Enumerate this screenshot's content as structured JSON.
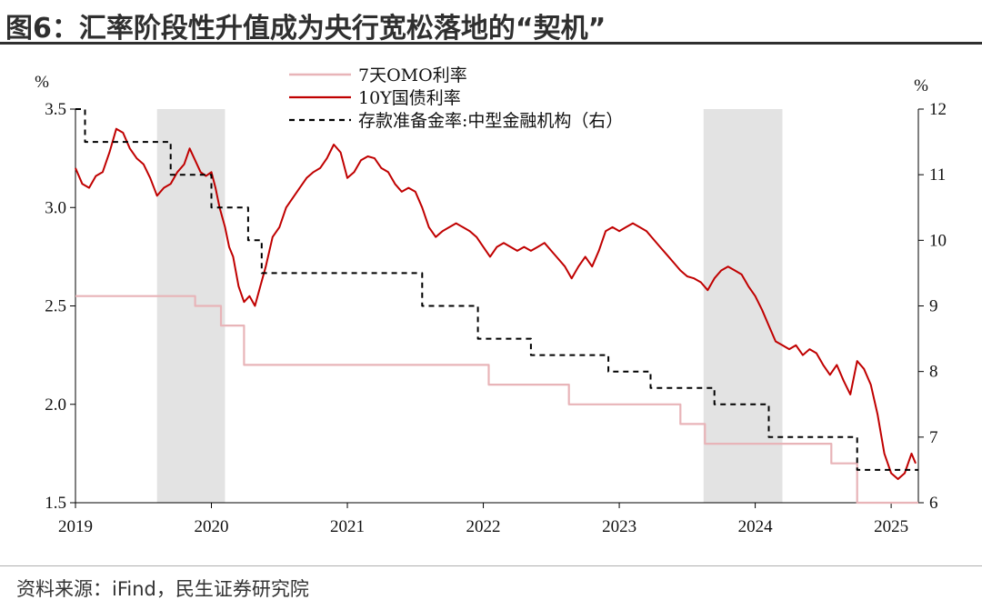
{
  "header": {
    "title": "图6：汇率阶段性升值成为央行宽松落地的“契机”"
  },
  "footer": {
    "source": "资料来源：iFind，民生证券研究院"
  },
  "chart_data": {
    "type": "line",
    "left_axis": {
      "unit": "%",
      "ylim": [
        1.5,
        3.5
      ],
      "ticks": [
        "3.5",
        "3.0",
        "2.5",
        "2.0",
        "1.5"
      ]
    },
    "right_axis": {
      "unit": "%",
      "ylim": [
        6,
        12
      ],
      "ticks": [
        "12",
        "11",
        "10",
        "9",
        "8",
        "7",
        "6"
      ]
    },
    "x_axis": {
      "xlim": [
        2019.0,
        2025.2
      ],
      "ticks": [
        "2019",
        "2020",
        "2021",
        "2022",
        "2023",
        "2024",
        "2025"
      ]
    },
    "shaded_periods": [
      [
        2019.6,
        2020.1
      ],
      [
        2023.62,
        2024.2
      ]
    ],
    "colors": {
      "omo": "#e8b4b8",
      "bond": "#c00000",
      "rrr": "#000000",
      "shade": "#e3e3e3"
    },
    "legend": [
      {
        "label": "7天OMO利率",
        "style": "omo"
      },
      {
        "label": "10Y国债利率",
        "style": "bond"
      },
      {
        "label": "存款准备金率:中型金融机构（右）",
        "style": "rrr"
      }
    ],
    "series": [
      {
        "name": "7天OMO利率",
        "axis": "left",
        "step": true,
        "points": [
          [
            2019.0,
            2.55
          ],
          [
            2019.88,
            2.5
          ],
          [
            2020.07,
            2.4
          ],
          [
            2020.24,
            2.2
          ],
          [
            2022.04,
            2.1
          ],
          [
            2022.63,
            2.0
          ],
          [
            2023.45,
            1.9
          ],
          [
            2023.63,
            1.8
          ],
          [
            2024.56,
            1.7
          ],
          [
            2024.75,
            1.5
          ],
          [
            2025.2,
            1.5
          ]
        ]
      },
      {
        "name": "10Y国债利率",
        "axis": "left",
        "step": false,
        "points": [
          [
            2019.0,
            3.2
          ],
          [
            2019.05,
            3.12
          ],
          [
            2019.1,
            3.1
          ],
          [
            2019.15,
            3.16
          ],
          [
            2019.2,
            3.18
          ],
          [
            2019.25,
            3.28
          ],
          [
            2019.3,
            3.4
          ],
          [
            2019.35,
            3.38
          ],
          [
            2019.4,
            3.3
          ],
          [
            2019.45,
            3.25
          ],
          [
            2019.5,
            3.22
          ],
          [
            2019.55,
            3.15
          ],
          [
            2019.6,
            3.06
          ],
          [
            2019.65,
            3.1
          ],
          [
            2019.7,
            3.12
          ],
          [
            2019.75,
            3.18
          ],
          [
            2019.8,
            3.22
          ],
          [
            2019.84,
            3.3
          ],
          [
            2019.88,
            3.24
          ],
          [
            2019.92,
            3.18
          ],
          [
            2019.96,
            3.16
          ],
          [
            2020.0,
            3.18
          ],
          [
            2020.03,
            3.1
          ],
          [
            2020.06,
            3.0
          ],
          [
            2020.1,
            2.9
          ],
          [
            2020.13,
            2.8
          ],
          [
            2020.16,
            2.75
          ],
          [
            2020.2,
            2.6
          ],
          [
            2020.24,
            2.52
          ],
          [
            2020.28,
            2.55
          ],
          [
            2020.32,
            2.5
          ],
          [
            2020.36,
            2.6
          ],
          [
            2020.4,
            2.7
          ],
          [
            2020.45,
            2.85
          ],
          [
            2020.5,
            2.9
          ],
          [
            2020.55,
            3.0
          ],
          [
            2020.6,
            3.05
          ],
          [
            2020.65,
            3.1
          ],
          [
            2020.7,
            3.15
          ],
          [
            2020.75,
            3.18
          ],
          [
            2020.8,
            3.2
          ],
          [
            2020.85,
            3.25
          ],
          [
            2020.9,
            3.32
          ],
          [
            2020.95,
            3.28
          ],
          [
            2021.0,
            3.15
          ],
          [
            2021.05,
            3.18
          ],
          [
            2021.1,
            3.24
          ],
          [
            2021.15,
            3.26
          ],
          [
            2021.2,
            3.25
          ],
          [
            2021.25,
            3.2
          ],
          [
            2021.3,
            3.18
          ],
          [
            2021.35,
            3.12
          ],
          [
            2021.4,
            3.08
          ],
          [
            2021.45,
            3.1
          ],
          [
            2021.5,
            3.08
          ],
          [
            2021.55,
            3.0
          ],
          [
            2021.6,
            2.9
          ],
          [
            2021.65,
            2.85
          ],
          [
            2021.7,
            2.88
          ],
          [
            2021.75,
            2.9
          ],
          [
            2021.8,
            2.92
          ],
          [
            2021.85,
            2.9
          ],
          [
            2021.9,
            2.88
          ],
          [
            2021.95,
            2.85
          ],
          [
            2022.0,
            2.8
          ],
          [
            2022.05,
            2.75
          ],
          [
            2022.1,
            2.8
          ],
          [
            2022.15,
            2.82
          ],
          [
            2022.2,
            2.8
          ],
          [
            2022.25,
            2.78
          ],
          [
            2022.3,
            2.8
          ],
          [
            2022.35,
            2.78
          ],
          [
            2022.4,
            2.8
          ],
          [
            2022.45,
            2.82
          ],
          [
            2022.5,
            2.78
          ],
          [
            2022.55,
            2.74
          ],
          [
            2022.6,
            2.7
          ],
          [
            2022.65,
            2.64
          ],
          [
            2022.7,
            2.7
          ],
          [
            2022.75,
            2.75
          ],
          [
            2022.8,
            2.7
          ],
          [
            2022.85,
            2.78
          ],
          [
            2022.9,
            2.88
          ],
          [
            2022.95,
            2.9
          ],
          [
            2023.0,
            2.88
          ],
          [
            2023.05,
            2.9
          ],
          [
            2023.1,
            2.92
          ],
          [
            2023.15,
            2.9
          ],
          [
            2023.2,
            2.88
          ],
          [
            2023.25,
            2.84
          ],
          [
            2023.3,
            2.8
          ],
          [
            2023.35,
            2.76
          ],
          [
            2023.4,
            2.72
          ],
          [
            2023.45,
            2.68
          ],
          [
            2023.5,
            2.65
          ],
          [
            2023.55,
            2.64
          ],
          [
            2023.6,
            2.62
          ],
          [
            2023.65,
            2.58
          ],
          [
            2023.7,
            2.64
          ],
          [
            2023.75,
            2.68
          ],
          [
            2023.8,
            2.7
          ],
          [
            2023.85,
            2.68
          ],
          [
            2023.9,
            2.66
          ],
          [
            2023.95,
            2.6
          ],
          [
            2024.0,
            2.55
          ],
          [
            2024.05,
            2.48
          ],
          [
            2024.1,
            2.4
          ],
          [
            2024.15,
            2.32
          ],
          [
            2024.2,
            2.3
          ],
          [
            2024.25,
            2.28
          ],
          [
            2024.3,
            2.3
          ],
          [
            2024.35,
            2.25
          ],
          [
            2024.4,
            2.28
          ],
          [
            2024.45,
            2.26
          ],
          [
            2024.5,
            2.2
          ],
          [
            2024.55,
            2.15
          ],
          [
            2024.6,
            2.2
          ],
          [
            2024.65,
            2.12
          ],
          [
            2024.7,
            2.05
          ],
          [
            2024.75,
            2.22
          ],
          [
            2024.8,
            2.18
          ],
          [
            2024.85,
            2.1
          ],
          [
            2024.9,
            1.95
          ],
          [
            2024.95,
            1.75
          ],
          [
            2025.0,
            1.65
          ],
          [
            2025.05,
            1.62
          ],
          [
            2025.1,
            1.65
          ],
          [
            2025.15,
            1.75
          ],
          [
            2025.18,
            1.7
          ]
        ]
      },
      {
        "name": "存款准备金率:中型金融机构（右）",
        "axis": "right",
        "step": true,
        "points": [
          [
            2019.0,
            12.0
          ],
          [
            2019.07,
            11.5
          ],
          [
            2019.7,
            11.0
          ],
          [
            2020.0,
            10.5
          ],
          [
            2020.27,
            10.0
          ],
          [
            2020.37,
            9.5
          ],
          [
            2021.55,
            9.0
          ],
          [
            2021.96,
            8.5
          ],
          [
            2022.35,
            8.25
          ],
          [
            2022.92,
            8.0
          ],
          [
            2023.23,
            7.75
          ],
          [
            2023.7,
            7.5
          ],
          [
            2024.1,
            7.0
          ],
          [
            2024.75,
            6.5
          ],
          [
            2025.2,
            6.5
          ]
        ]
      }
    ]
  }
}
